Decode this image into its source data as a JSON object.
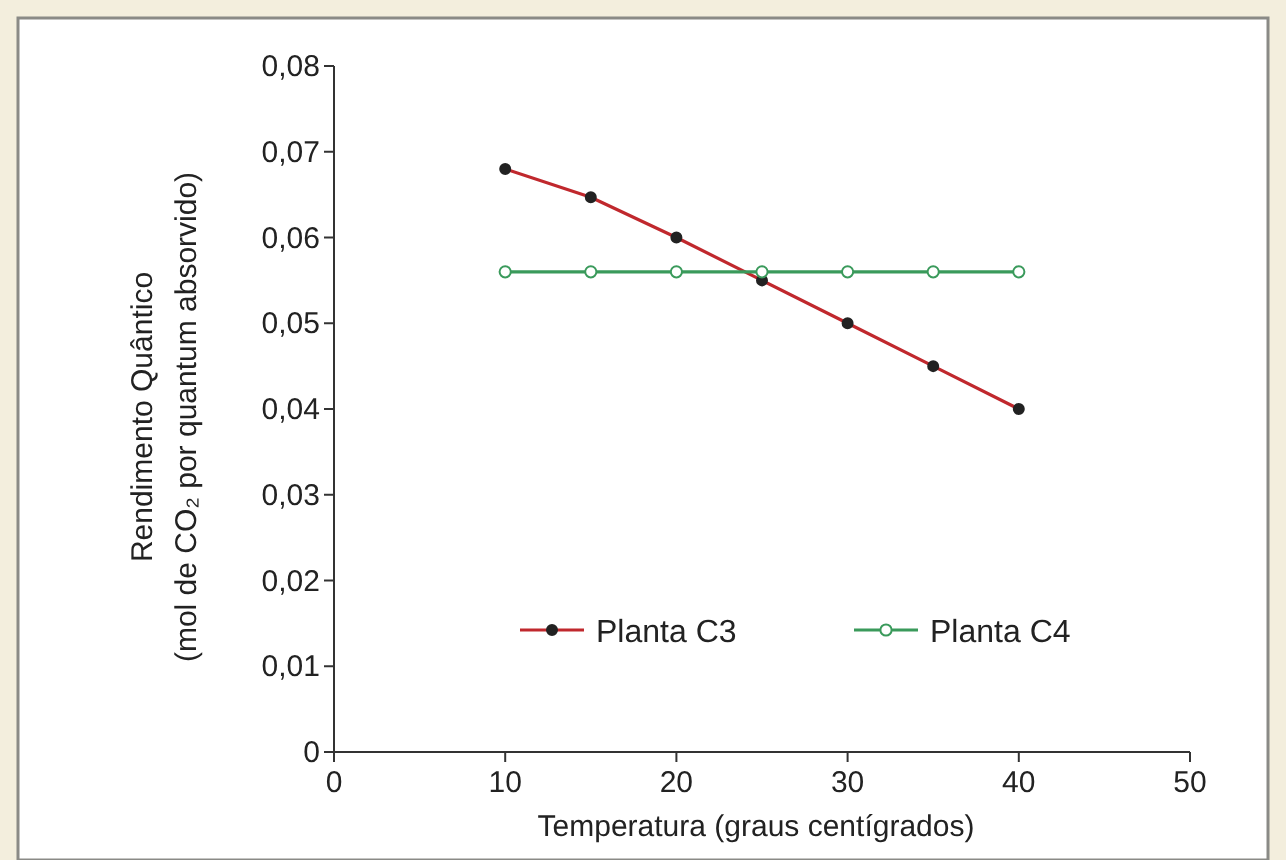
{
  "chart_data": {
    "type": "line",
    "xlabel": "Temperatura (graus centígrados)",
    "ylabel": "Rendimento Quântico\n(mol de CO₂ por quantum absorvido)",
    "x": [
      10,
      15,
      20,
      25,
      30,
      35,
      40
    ],
    "series": [
      {
        "name": "Planta C3",
        "color": "#c0282d",
        "values": [
          0.068,
          0.0647,
          0.06,
          0.055,
          0.05,
          0.045,
          0.04
        ]
      },
      {
        "name": "Planta C4",
        "color": "#3a9a5b",
        "values": [
          0.056,
          0.056,
          0.056,
          0.056,
          0.056,
          0.056,
          0.056
        ]
      }
    ],
    "xlim": [
      0,
      50
    ],
    "xticks": [
      0,
      10,
      20,
      30,
      40,
      50
    ],
    "ylim": [
      0,
      0.08
    ],
    "yticks": [
      0,
      {
        "value": 0.01,
        "label": "0,01"
      },
      {
        "value": 0.02,
        "label": "0,02"
      },
      {
        "value": 0.03,
        "label": "0,03"
      },
      {
        "value": 0.04,
        "label": "0,04"
      },
      {
        "value": 0.05,
        "label": "0,05"
      },
      {
        "value": 0.06,
        "label": "0,06"
      },
      {
        "value": 0.07,
        "label": "0,07"
      },
      {
        "value": 0.08,
        "label": "0,08"
      }
    ],
    "grid": false,
    "legend": "bottom",
    "marker": "circle",
    "line_style": "solid"
  }
}
